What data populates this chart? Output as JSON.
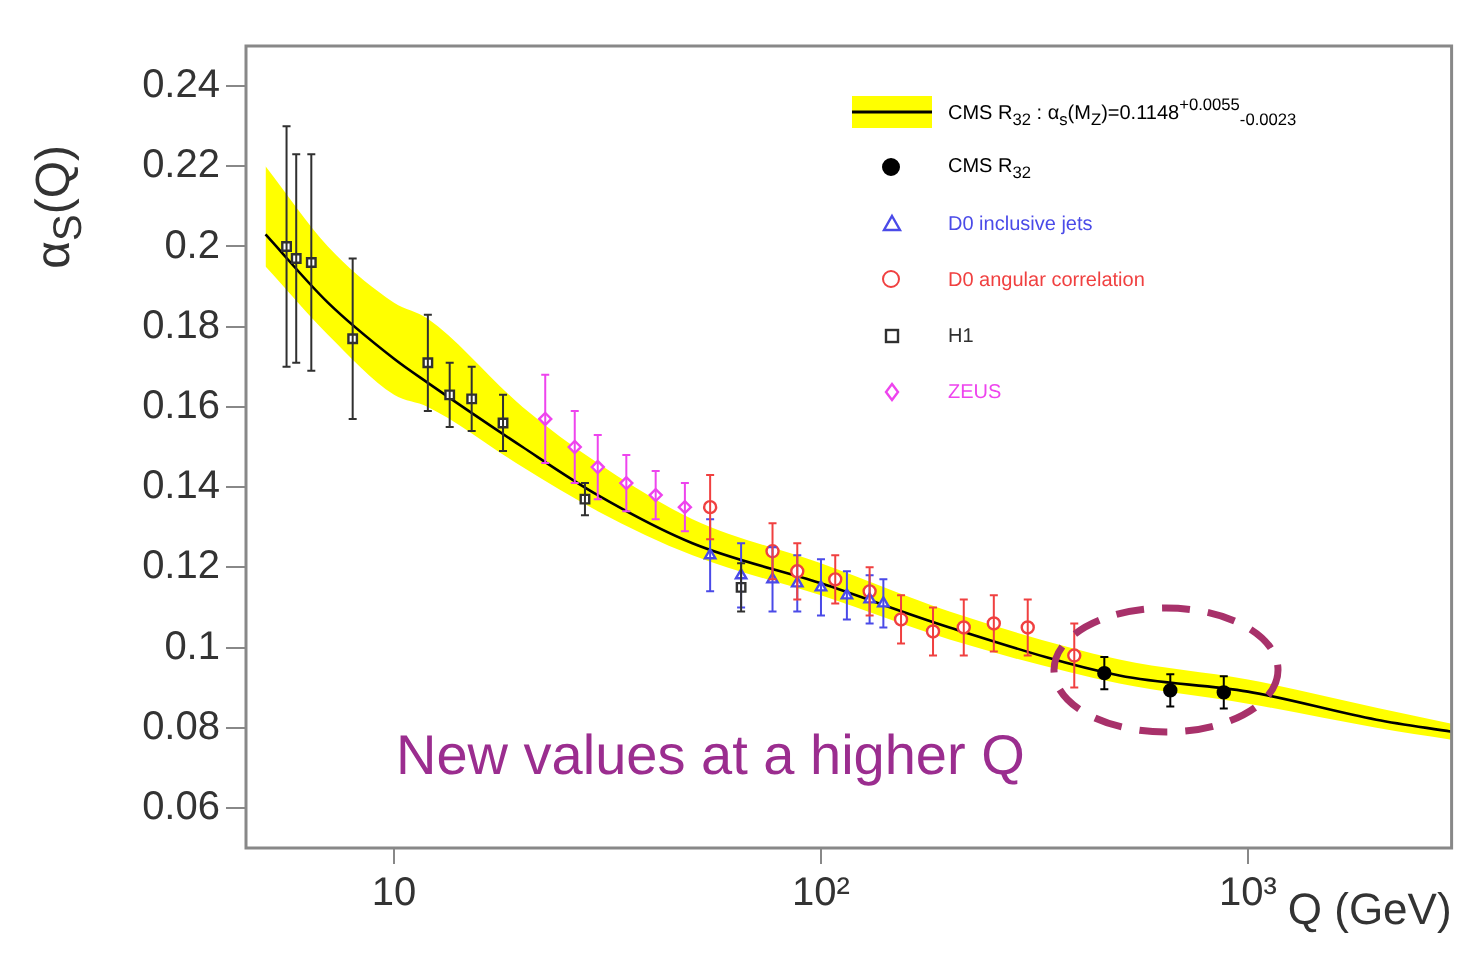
{
  "chart_data": {
    "type": "scatter",
    "xlabel": "Q (GeV)",
    "ylabel": "α$_{S}$(Q)",
    "log": "x",
    "xlim": [
      4.5,
      3000
    ],
    "ylim": [
      0.05,
      0.25
    ],
    "xticks": [
      {
        "value": 10,
        "label": "10"
      },
      {
        "value": 100,
        "label": "10²"
      },
      {
        "value": 1000,
        "label": "10³"
      }
    ],
    "yticks": [
      0.06,
      0.08,
      0.1,
      0.12,
      0.14,
      0.16,
      0.18,
      0.2,
      0.22,
      0.24
    ],
    "grid": false,
    "legend": "top right",
    "annotations": [
      "New values at a higher Q"
    ],
    "series": [
      {
        "name": "CMS R$_{32}$ : α$_{s}$(M$_{Z}$)=0.1148$^{+0.0055}$$_{-0.0023}$",
        "type": "line",
        "color": "#000000",
        "line_style": "solid",
        "marker": "none",
        "x": [
          5,
          7,
          10,
          12,
          20,
          30,
          50,
          100,
          200,
          500,
          1000,
          2000,
          3000
        ],
        "values": [
          0.203,
          0.186,
          0.172,
          0.166,
          0.15,
          0.138,
          0.126,
          0.116,
          0.105,
          0.093,
          0.089,
          0.082,
          0.079
        ],
        "lower": [
          0.195,
          0.178,
          0.163,
          0.16,
          0.145,
          0.134,
          0.123,
          0.113,
          0.102,
          0.091,
          0.086,
          0.08,
          0.077
        ],
        "upper": [
          0.22,
          0.2,
          0.186,
          0.182,
          0.16,
          0.146,
          0.132,
          0.121,
          0.109,
          0.097,
          0.092,
          0.085,
          0.081
        ]
      },
      {
        "name": "CMS R$_{32}$",
        "color": "#000000",
        "marker": "circle",
        "x": [
          461,
          658,
          878
        ],
        "values": [
          0.0936,
          0.0893,
          0.0888
        ],
        "errors": [
          0.004,
          0.004,
          0.004
        ]
      },
      {
        "name": "D0 inclusive jets",
        "color": "#4a4ae8",
        "marker": "triangle",
        "x": [
          55,
          65,
          77,
          88,
          100,
          115,
          130,
          140
        ],
        "values": [
          0.123,
          0.118,
          0.117,
          0.116,
          0.115,
          0.113,
          0.112,
          0.111
        ],
        "errors": [
          0.009,
          0.008,
          0.008,
          0.007,
          0.007,
          0.006,
          0.006,
          0.006
        ]
      },
      {
        "name": "D0 angular correlation",
        "color": "#f04040",
        "marker": "circle",
        "x": [
          55,
          77,
          88,
          108,
          130,
          154,
          183,
          216,
          254,
          305,
          392
        ],
        "values": [
          0.135,
          0.124,
          0.119,
          0.117,
          0.114,
          0.107,
          0.104,
          0.105,
          0.106,
          0.105,
          0.098
        ],
        "errors": [
          0.008,
          0.007,
          0.007,
          0.006,
          0.006,
          0.006,
          0.006,
          0.007,
          0.007,
          0.007,
          0.008
        ]
      },
      {
        "name": "H1",
        "color": "#303030",
        "marker": "square",
        "x": [
          5.6,
          5.9,
          6.4,
          8,
          12,
          13.5,
          15.2,
          18,
          28,
          65
        ],
        "values": [
          0.2,
          0.197,
          0.196,
          0.177,
          0.171,
          0.163,
          0.162,
          0.156,
          0.137,
          0.115
        ],
        "errors": [
          0.03,
          0.026,
          0.027,
          0.02,
          0.012,
          0.008,
          0.008,
          0.007,
          0.004,
          0.006
        ]
      },
      {
        "name": "ZEUS",
        "color": "#ee44ee",
        "marker": "diamond",
        "x": [
          22.6,
          26.5,
          30,
          35,
          41,
          48
        ],
        "values": [
          0.157,
          0.15,
          0.145,
          0.141,
          0.138,
          0.135
        ],
        "errors": [
          0.011,
          0.009,
          0.008,
          0.007,
          0.006,
          0.006
        ]
      }
    ]
  }
}
